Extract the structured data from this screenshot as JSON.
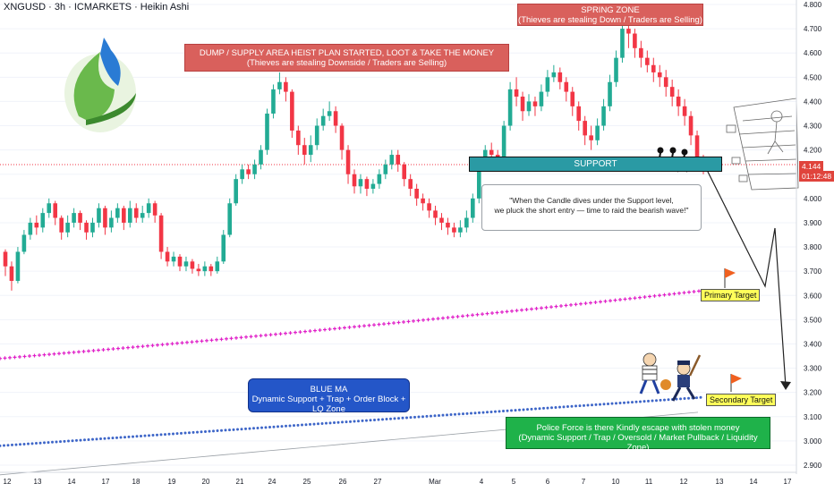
{
  "header": {
    "title": "XNGUSD · 3h · ICMARKETS · Heikin Ashi"
  },
  "price_badge": {
    "price": "4.144",
    "countdown": "01:12:48"
  },
  "annotations": {
    "dump_line1": "DUMP / SUPPLY AREA HEIST PLAN STARTED, LOOT & TAKE THE MONEY",
    "dump_line2": "(Thieves are stealing Downside / Traders are Selling)",
    "spring_line1": "SPRING ZONE",
    "spring_line2": "(Thieves are stealing Down / Traders are Selling)",
    "support": "SUPPORT",
    "callout_line1": "\"When the Candle dives under the Support level,",
    "callout_line2": "we pluck the short entry — time to raid the bearish wave!\"",
    "bluema_line1": "BLUE MA",
    "bluema_line2": "Dynamic Support + Trap + Order Block + LQ Zone",
    "police_line1": "Police Force is there Kindly escape with stolen money",
    "police_line2": "(Dynamic Support / Trap / Oversold / Market Pullback / Liquidity Zone)",
    "primary_target": "Primary Target",
    "secondary_target": "Secondary Target"
  },
  "colors": {
    "bull": "#22ab94",
    "bear": "#f23645",
    "ma_magenta": "#e020c8",
    "ma_blue": "#3e66c8",
    "support_fill": "#2a9aa4",
    "zone_red": "#d9605c"
  },
  "icons": [
    "natural-gas-logo-icon",
    "thieves-running-icon",
    "wall-break-icon",
    "thief-icon",
    "police-icon",
    "target-flag-icon"
  ],
  "chart_data": {
    "type": "candlestick",
    "series_style": "Heikin Ashi",
    "symbol": "XNGUSD",
    "timeframe": "3h",
    "ylim": [
      2.88,
      4.82
    ],
    "y_ticks": [
      "4.800",
      "4.700",
      "4.600",
      "4.500",
      "4.400",
      "4.300",
      "4.200",
      "4.100",
      "4.000",
      "3.900",
      "3.800",
      "3.700",
      "3.600",
      "3.500",
      "3.400",
      "3.300",
      "3.200",
      "3.100",
      "3.000",
      "2.900"
    ],
    "x_ticks": [
      "12",
      "13",
      "14",
      "17",
      "18",
      "19",
      "20",
      "21",
      "24",
      "25",
      "26",
      "27",
      "Mar",
      "4",
      "5",
      "6",
      "7",
      "10",
      "11",
      "12",
      "13",
      "14",
      "17"
    ],
    "last_price": 4.144,
    "support_zone": [
      4.06,
      4.13
    ],
    "primary_target": 3.6,
    "secondary_target": 3.18,
    "candles": [
      [
        3.78,
        3.72,
        3.79,
        3.68
      ],
      [
        3.72,
        3.66,
        3.74,
        3.62
      ],
      [
        3.66,
        3.78,
        3.8,
        3.65
      ],
      [
        3.78,
        3.85,
        3.87,
        3.77
      ],
      [
        3.85,
        3.9,
        3.92,
        3.83
      ],
      [
        3.9,
        3.88,
        3.93,
        3.85
      ],
      [
        3.88,
        3.94,
        3.96,
        3.86
      ],
      [
        3.94,
        3.98,
        4.0,
        3.92
      ],
      [
        3.98,
        3.92,
        3.99,
        3.89
      ],
      [
        3.92,
        3.86,
        3.93,
        3.83
      ],
      [
        3.86,
        3.9,
        3.93,
        3.84
      ],
      [
        3.9,
        3.94,
        3.96,
        3.88
      ],
      [
        3.94,
        3.9,
        3.95,
        3.87
      ],
      [
        3.9,
        3.86,
        3.91,
        3.83
      ],
      [
        3.86,
        3.9,
        3.92,
        3.84
      ],
      [
        3.9,
        3.96,
        3.98,
        3.88
      ],
      [
        3.96,
        3.88,
        3.97,
        3.85
      ],
      [
        3.88,
        3.92,
        3.95,
        3.86
      ],
      [
        3.92,
        3.96,
        3.98,
        3.9
      ],
      [
        3.96,
        3.9,
        3.97,
        3.87
      ],
      [
        3.9,
        3.96,
        3.99,
        3.88
      ],
      [
        3.96,
        3.92,
        3.98,
        3.9
      ],
      [
        3.92,
        3.94,
        3.97,
        3.9
      ],
      [
        3.94,
        3.98,
        4.0,
        3.92
      ],
      [
        3.98,
        3.93,
        3.99,
        3.9
      ],
      [
        3.93,
        3.78,
        3.94,
        3.75
      ],
      [
        3.78,
        3.74,
        3.8,
        3.72
      ],
      [
        3.74,
        3.76,
        3.78,
        3.72
      ],
      [
        3.76,
        3.72,
        3.77,
        3.7
      ],
      [
        3.72,
        3.74,
        3.76,
        3.7
      ],
      [
        3.74,
        3.71,
        3.75,
        3.69
      ],
      [
        3.71,
        3.7,
        3.73,
        3.68
      ],
      [
        3.7,
        3.72,
        3.74,
        3.68
      ],
      [
        3.72,
        3.7,
        3.73,
        3.68
      ],
      [
        3.7,
        3.74,
        3.76,
        3.69
      ],
      [
        3.74,
        3.85,
        3.87,
        3.73
      ],
      [
        3.85,
        3.98,
        4.0,
        3.84
      ],
      [
        3.98,
        4.08,
        4.1,
        3.97
      ],
      [
        4.08,
        4.12,
        4.14,
        4.06
      ],
      [
        4.12,
        4.1,
        4.14,
        4.08
      ],
      [
        4.1,
        4.14,
        4.16,
        4.08
      ],
      [
        4.14,
        4.2,
        4.22,
        4.12
      ],
      [
        4.2,
        4.35,
        4.37,
        4.18
      ],
      [
        4.35,
        4.45,
        4.47,
        4.33
      ],
      [
        4.45,
        4.48,
        4.52,
        4.43
      ],
      [
        4.48,
        4.44,
        4.5,
        4.4
      ],
      [
        4.44,
        4.28,
        4.45,
        4.25
      ],
      [
        4.28,
        4.22,
        4.3,
        4.18
      ],
      [
        4.22,
        4.18,
        4.25,
        4.14
      ],
      [
        4.18,
        4.22,
        4.26,
        4.15
      ],
      [
        4.22,
        4.3,
        4.33,
        4.2
      ],
      [
        4.3,
        4.34,
        4.37,
        4.28
      ],
      [
        4.34,
        4.36,
        4.4,
        4.32
      ],
      [
        4.36,
        4.3,
        4.38,
        4.27
      ],
      [
        4.3,
        4.2,
        4.31,
        4.16
      ],
      [
        4.2,
        4.1,
        4.22,
        4.06
      ],
      [
        4.1,
        4.05,
        4.12,
        4.02
      ],
      [
        4.05,
        4.08,
        4.1,
        4.02
      ],
      [
        4.08,
        4.04,
        4.09,
        4.01
      ],
      [
        4.04,
        4.06,
        4.08,
        4.02
      ],
      [
        4.06,
        4.1,
        4.12,
        4.04
      ],
      [
        4.1,
        4.14,
        4.16,
        4.08
      ],
      [
        4.14,
        4.18,
        4.2,
        4.12
      ],
      [
        4.18,
        4.14,
        4.2,
        4.11
      ],
      [
        4.14,
        4.08,
        4.15,
        4.05
      ],
      [
        4.08,
        4.04,
        4.1,
        4.01
      ],
      [
        4.04,
        4.0,
        4.06,
        3.97
      ],
      [
        4.0,
        3.98,
        4.02,
        3.95
      ],
      [
        3.98,
        3.95,
        4.0,
        3.92
      ],
      [
        3.95,
        3.92,
        3.97,
        3.89
      ],
      [
        3.92,
        3.9,
        3.94,
        3.87
      ],
      [
        3.9,
        3.88,
        3.92,
        3.85
      ],
      [
        3.88,
        3.86,
        3.9,
        3.84
      ],
      [
        3.86,
        3.88,
        3.91,
        3.84
      ],
      [
        3.88,
        3.92,
        3.95,
        3.86
      ],
      [
        3.92,
        4.0,
        4.02,
        3.9
      ],
      [
        4.0,
        4.14,
        4.16,
        3.98
      ],
      [
        4.14,
        4.2,
        4.22,
        4.12
      ],
      [
        4.2,
        4.18,
        4.23,
        4.14
      ],
      [
        4.18,
        4.16,
        4.2,
        4.12
      ],
      [
        4.16,
        4.3,
        4.32,
        4.14
      ],
      [
        4.3,
        4.45,
        4.48,
        4.28
      ],
      [
        4.45,
        4.42,
        4.5,
        4.38
      ],
      [
        4.42,
        4.36,
        4.44,
        4.32
      ],
      [
        4.36,
        4.4,
        4.43,
        4.34
      ],
      [
        4.4,
        4.38,
        4.42,
        4.34
      ],
      [
        4.38,
        4.44,
        4.47,
        4.36
      ],
      [
        4.44,
        4.5,
        4.53,
        4.42
      ],
      [
        4.5,
        4.52,
        4.55,
        4.48
      ],
      [
        4.52,
        4.48,
        4.54,
        4.45
      ],
      [
        4.48,
        4.44,
        4.5,
        4.4
      ],
      [
        4.44,
        4.38,
        4.46,
        4.34
      ],
      [
        4.38,
        4.32,
        4.4,
        4.28
      ],
      [
        4.32,
        4.26,
        4.34,
        4.22
      ],
      [
        4.26,
        4.24,
        4.3,
        4.2
      ],
      [
        4.24,
        4.3,
        4.33,
        4.22
      ],
      [
        4.3,
        4.38,
        4.41,
        4.28
      ],
      [
        4.38,
        4.48,
        4.51,
        4.36
      ],
      [
        4.48,
        4.58,
        4.61,
        4.46
      ],
      [
        4.58,
        4.7,
        4.74,
        4.56
      ],
      [
        4.7,
        4.68,
        4.75,
        4.62
      ],
      [
        4.68,
        4.62,
        4.7,
        4.58
      ],
      [
        4.62,
        4.58,
        4.65,
        4.54
      ],
      [
        4.58,
        4.55,
        4.61,
        4.52
      ],
      [
        4.55,
        4.52,
        4.58,
        4.48
      ],
      [
        4.52,
        4.5,
        4.55,
        4.46
      ],
      [
        4.5,
        4.46,
        4.53,
        4.42
      ],
      [
        4.46,
        4.42,
        4.49,
        4.38
      ],
      [
        4.42,
        4.38,
        4.45,
        4.34
      ],
      [
        4.38,
        4.34,
        4.41,
        4.3
      ],
      [
        4.34,
        4.26,
        4.36,
        4.22
      ],
      [
        4.26,
        4.16,
        4.28,
        4.12
      ],
      [
        4.16,
        4.144,
        4.18,
        4.1
      ]
    ],
    "ma_magenta_range": [
      3.34,
      3.62
    ],
    "ma_blue_range": [
      2.98,
      3.18
    ]
  }
}
